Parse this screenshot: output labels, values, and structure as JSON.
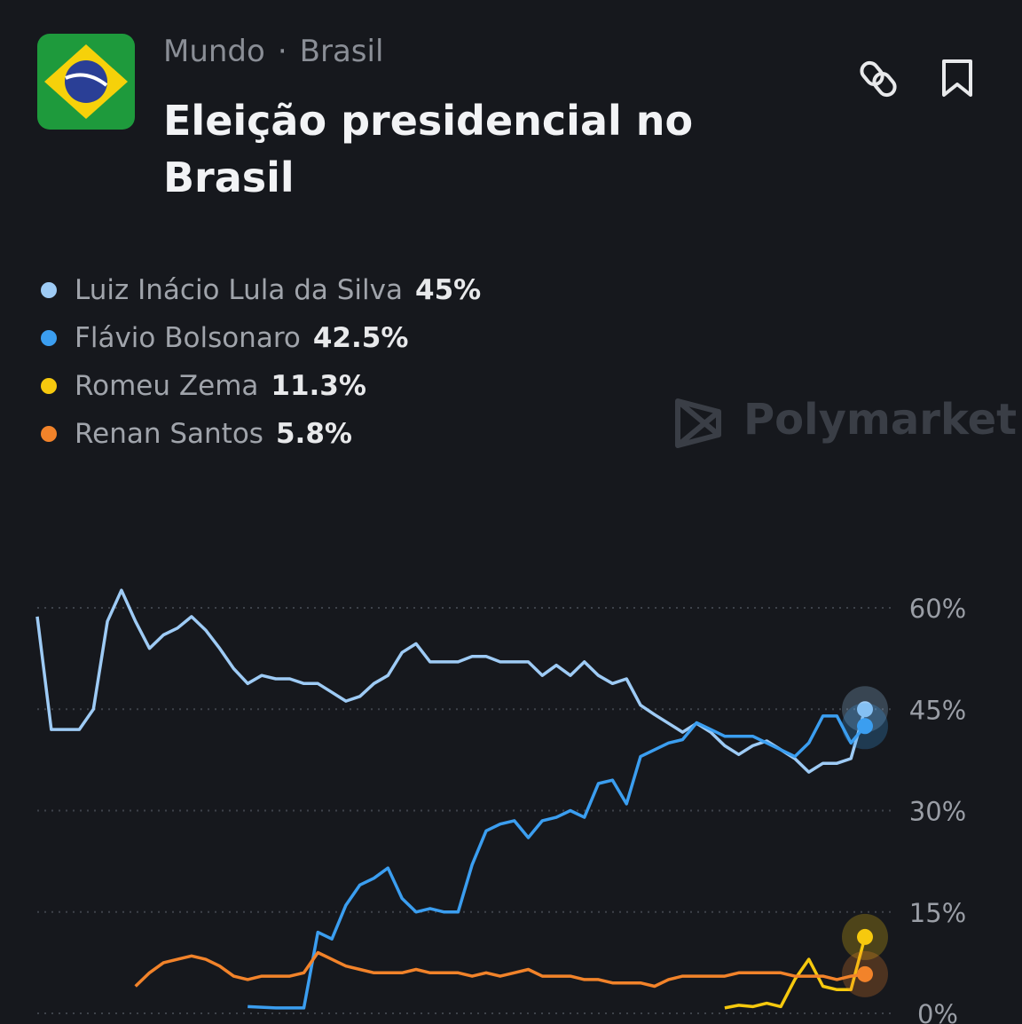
{
  "header": {
    "breadcrumb": [
      "Mundo",
      "Brasil"
    ],
    "title": "Eleição presidencial no Brasil"
  },
  "watermark": "Polymarket",
  "chart_data": {
    "type": "line",
    "series": [
      {
        "name": "Luiz Inácio Lula da Silva",
        "label": "45%",
        "color": "#9ecbf5",
        "values": [
          58.7,
          42,
          42,
          42,
          45,
          58,
          62.6,
          58,
          54,
          56,
          57,
          58.7,
          56.7,
          54,
          51,
          48.8,
          50,
          49.5,
          49.5,
          48.8,
          48.8,
          47.5,
          46.2,
          46.9,
          48.8,
          50,
          53.4,
          54.7,
          52,
          52,
          52,
          52.8,
          52.8,
          52,
          52,
          52,
          50,
          51.5,
          50,
          52,
          50,
          48.8,
          49.5,
          45.6,
          44.2,
          42.9,
          41.6,
          42.9,
          41.6,
          39.6,
          38.3,
          39.6,
          40.3,
          39,
          37.7,
          35.7,
          37,
          37,
          37.7,
          45
        ]
      },
      {
        "name": "Flávio Bolsonaro",
        "label": "42.5%",
        "color": "#3b9ef0",
        "values": [
          null,
          null,
          null,
          null,
          null,
          null,
          null,
          null,
          null,
          null,
          null,
          null,
          null,
          null,
          null,
          1,
          0.9,
          0.8,
          0.8,
          0.8,
          12,
          11,
          16,
          19,
          20,
          21.5,
          17,
          15,
          15.5,
          15,
          15,
          22,
          27,
          28,
          28.5,
          26,
          28.5,
          29,
          30,
          29,
          34,
          34.5,
          31,
          38,
          39,
          40,
          40.5,
          43,
          42,
          41,
          41,
          41,
          40,
          39,
          38,
          40,
          44,
          44,
          40,
          42.5
        ]
      },
      {
        "name": "Romeu Zema",
        "label": "11.3%",
        "color": "#f6c90e",
        "values": [
          null,
          null,
          null,
          null,
          null,
          null,
          null,
          null,
          null,
          null,
          null,
          null,
          null,
          null,
          null,
          null,
          null,
          null,
          null,
          null,
          null,
          null,
          null,
          null,
          null,
          null,
          null,
          null,
          null,
          null,
          null,
          null,
          null,
          null,
          null,
          null,
          null,
          null,
          null,
          null,
          null,
          null,
          null,
          null,
          null,
          null,
          null,
          null,
          null,
          0.8,
          1.2,
          1,
          1.5,
          1,
          5,
          8,
          4,
          3.5,
          3.5,
          11.3
        ]
      },
      {
        "name": "Renan Santos",
        "label": "5.8%",
        "color": "#f2832a",
        "values": [
          null,
          null,
          null,
          null,
          null,
          null,
          null,
          4,
          6,
          7.5,
          8,
          8.5,
          8,
          7,
          5.5,
          5,
          5.5,
          5.5,
          5.5,
          6,
          9,
          8,
          7,
          6.5,
          6,
          6,
          6,
          6.5,
          6,
          6,
          6,
          5.5,
          6,
          5.5,
          6,
          6.5,
          5.5,
          5.5,
          5.5,
          5,
          5,
          4.5,
          4.5,
          4.5,
          4,
          5,
          5.5,
          5.5,
          5.5,
          5.5,
          6,
          6,
          6,
          6,
          5.5,
          5.5,
          5.5,
          5,
          5.5,
          5.8
        ]
      }
    ],
    "ylim": [
      -1.5,
      64
    ],
    "yticks": [
      {
        "value": 0,
        "label": "0%"
      },
      {
        "value": 15,
        "label": "15%"
      },
      {
        "value": 30,
        "label": "30%"
      },
      {
        "value": 45,
        "label": "45%"
      },
      {
        "value": 60,
        "label": "60%"
      }
    ],
    "grid": true
  }
}
